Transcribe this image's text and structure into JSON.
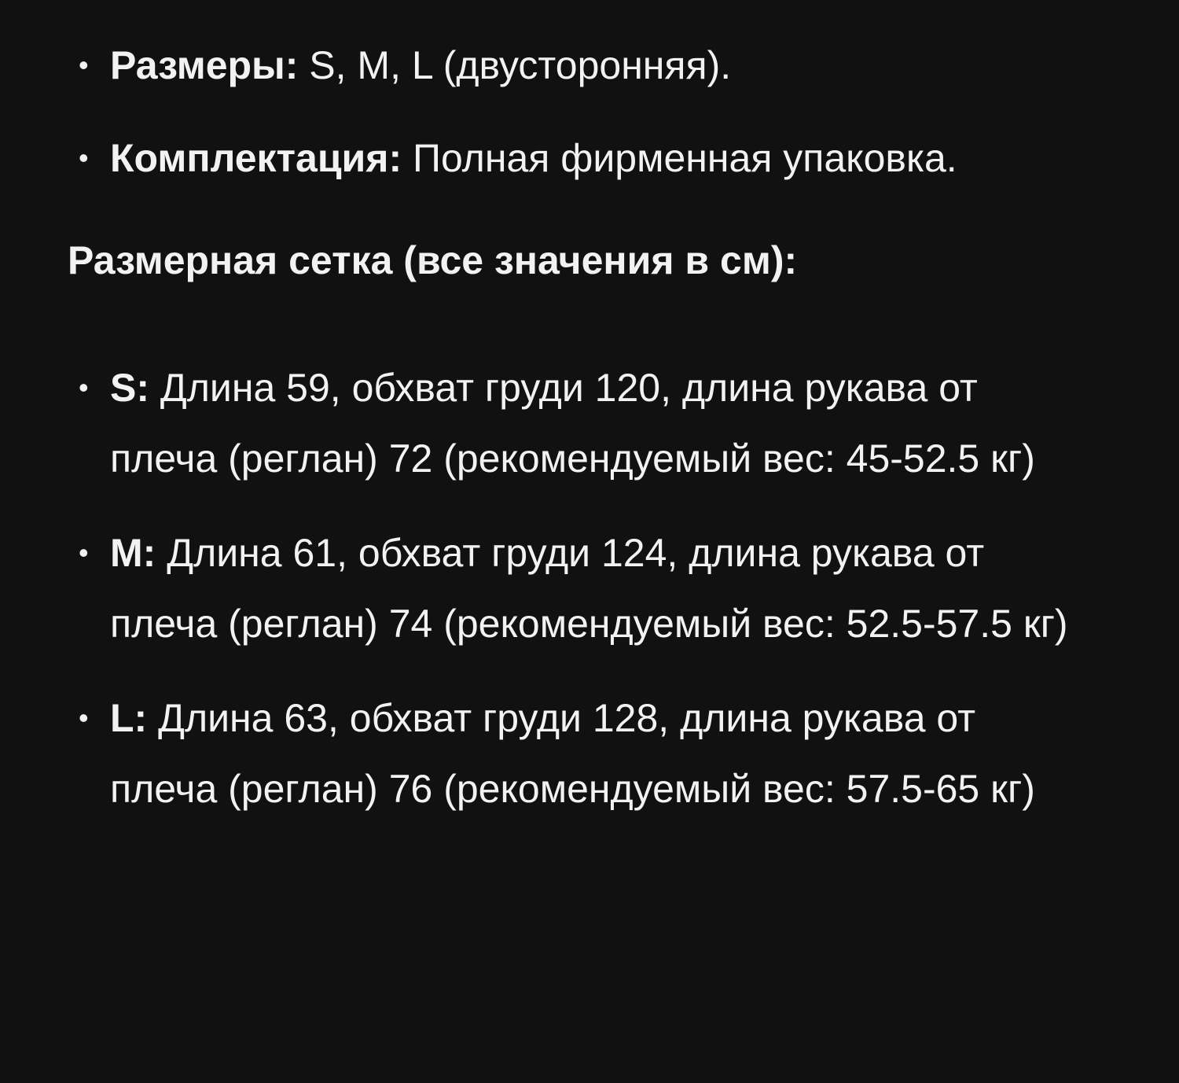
{
  "features": [
    {
      "label": "Размеры:",
      "text": " S, M, L (двусторонняя)."
    },
    {
      "label": "Комплектация:",
      "text": " Полная фирменная упаковка."
    }
  ],
  "size_chart": {
    "heading": "Размерная сетка (все значения в см):",
    "items": [
      {
        "label": "S:",
        "text": " Длина 59, обхват груди 120, длина рукава от плеча (реглан) 72 (рекомендуемый вес: 45-52.5 кг)"
      },
      {
        "label": "M:",
        "text": " Длина 61, обхват груди 124, длина рукава от плеча (реглан) 74 (рекомендуемый вес: 52.5-57.5 кг)"
      },
      {
        "label": "L:",
        "text": " Длина 63, обхват груди 128, длина рукава от плеча (реглан) 76 (рекомендуемый вес: 57.5-65 кг)"
      }
    ]
  }
}
